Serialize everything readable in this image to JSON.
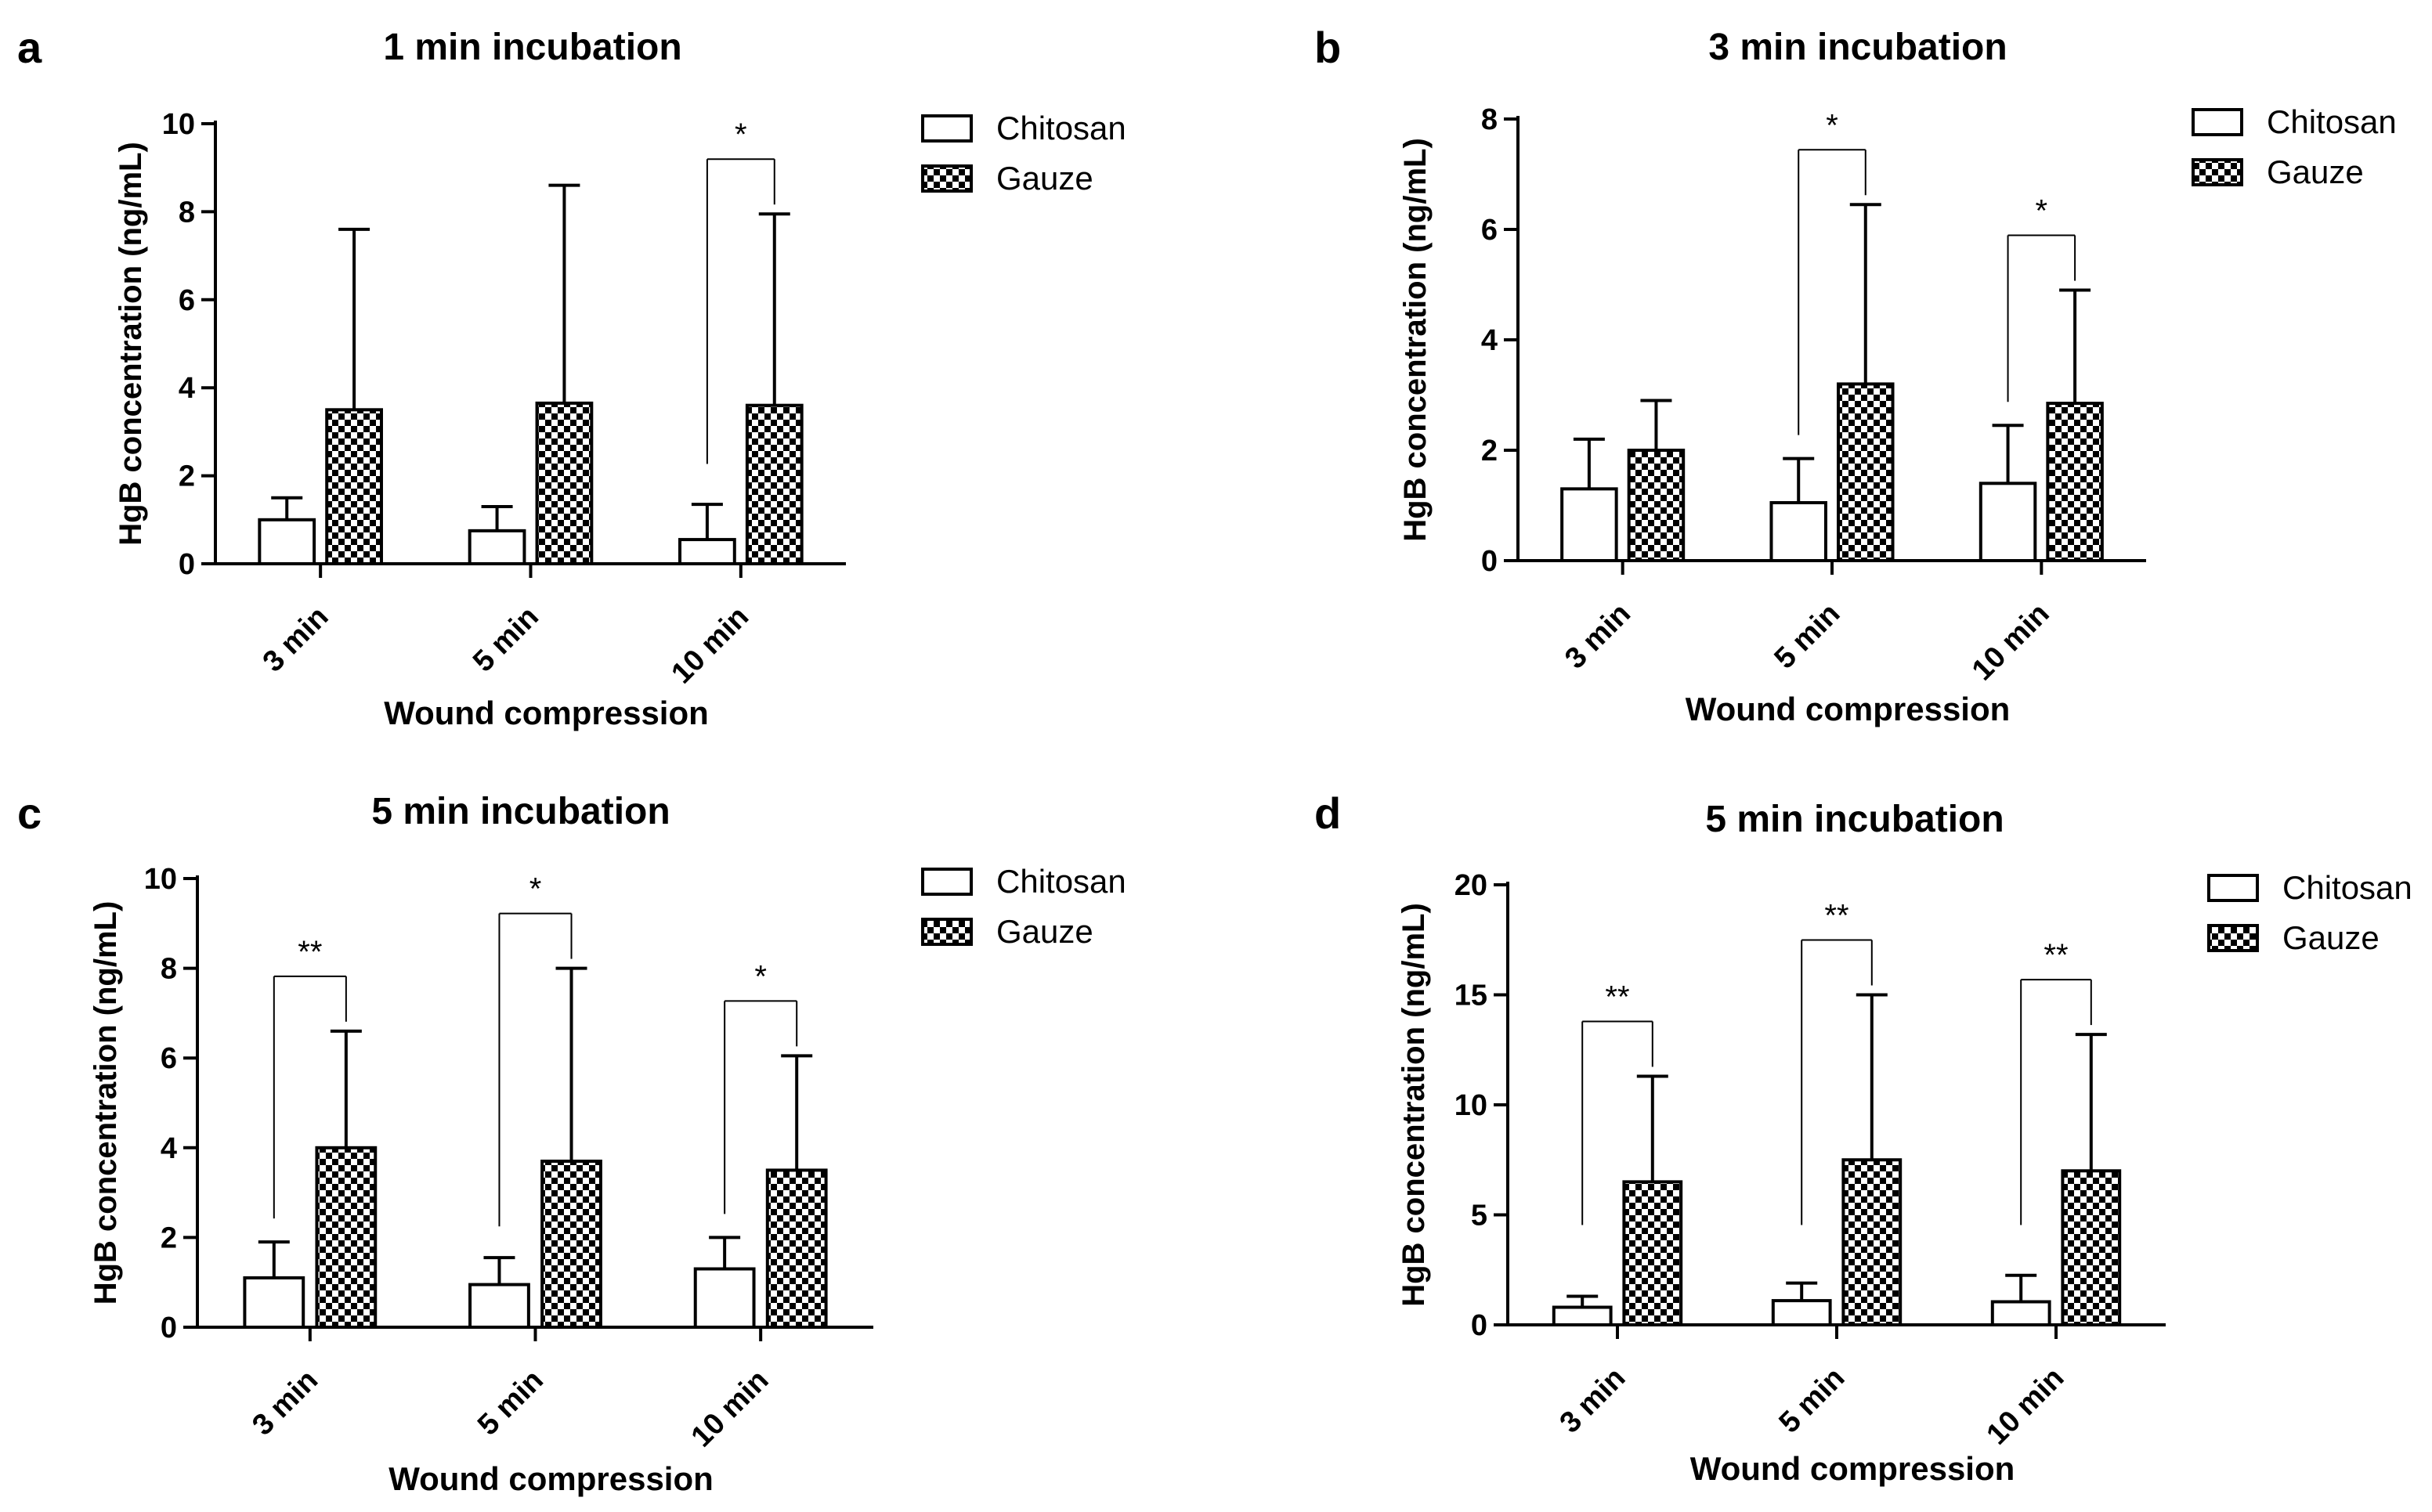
{
  "colors": {
    "axis": "#000000",
    "bar_fill": "#ffffff",
    "checker_dark": "#000000",
    "checker_light": "#ffffff"
  },
  "legend_icons": {
    "chitosan": "white-box-icon",
    "gauze": "checker-box-icon"
  },
  "chart_data": [
    {
      "panel": "a",
      "type": "bar",
      "title": "1 min incubation",
      "xlabel": "Wound compression",
      "ylabel": "HgB concentration (ng/mL)",
      "ylim": [
        0,
        10
      ],
      "yticks": [
        "0",
        "2",
        "4",
        "6",
        "8",
        "10"
      ],
      "categories": [
        "3 min",
        "5 min",
        "10 min"
      ],
      "series": [
        {
          "name": "Chitosan",
          "values": [
            1.0,
            0.75,
            0.55
          ],
          "errors": [
            0.5,
            0.55,
            0.8
          ]
        },
        {
          "name": "Gauze",
          "values": [
            3.5,
            3.65,
            3.6
          ],
          "errors": [
            4.1,
            4.95,
            4.35
          ]
        }
      ],
      "significance": [
        {
          "category": 2,
          "label": "*"
        }
      ]
    },
    {
      "panel": "b",
      "type": "bar",
      "title": "3 min incubation",
      "xlabel": "Wound compression",
      "ylabel": "HgB concentration (ng/mL)",
      "ylim": [
        0,
        8
      ],
      "yticks": [
        "0",
        "2",
        "4",
        "6",
        "8"
      ],
      "categories": [
        "3 min",
        "5 min",
        "10 min"
      ],
      "series": [
        {
          "name": "Chitosan",
          "values": [
            1.3,
            1.05,
            1.4
          ],
          "errors": [
            0.9,
            0.8,
            1.05
          ]
        },
        {
          "name": "Gauze",
          "values": [
            2.0,
            3.2,
            2.85
          ],
          "errors": [
            0.9,
            3.25,
            2.05
          ]
        }
      ],
      "significance": [
        {
          "category": 1,
          "label": "*"
        },
        {
          "category": 2,
          "label": "*"
        }
      ]
    },
    {
      "panel": "c",
      "type": "bar",
      "title": "5 min incubation",
      "xlabel": "Wound compression",
      "ylabel": "HgB concentration (ng/mL)",
      "ylim": [
        0,
        10
      ],
      "yticks": [
        "0",
        "2",
        "4",
        "6",
        "8",
        "10"
      ],
      "categories": [
        "3 min",
        "5 min",
        "10 min"
      ],
      "series": [
        {
          "name": "Chitosan",
          "values": [
            1.1,
            0.95,
            1.3
          ],
          "errors": [
            0.8,
            0.6,
            0.7
          ]
        },
        {
          "name": "Gauze",
          "values": [
            4.0,
            3.7,
            3.5
          ],
          "errors": [
            2.6,
            4.3,
            2.55
          ]
        }
      ],
      "significance": [
        {
          "category": 0,
          "label": "**"
        },
        {
          "category": 1,
          "label": "*"
        },
        {
          "category": 2,
          "label": "*"
        }
      ]
    },
    {
      "panel": "d",
      "type": "bar",
      "title": "5 min incubation",
      "xlabel": "Wound compression",
      "ylabel": "HgB concentration (ng/mL)",
      "ylim": [
        0,
        20
      ],
      "yticks": [
        "0",
        "5",
        "10",
        "15",
        "20"
      ],
      "categories": [
        "3 min",
        "5 min",
        "10 min"
      ],
      "series": [
        {
          "name": "Chitosan",
          "values": [
            0.8,
            1.1,
            1.05
          ],
          "errors": [
            0.5,
            0.8,
            1.2
          ]
        },
        {
          "name": "Gauze",
          "values": [
            6.5,
            7.5,
            7.0
          ],
          "errors": [
            4.8,
            7.5,
            6.2
          ]
        }
      ],
      "significance": [
        {
          "category": 0,
          "label": "**"
        },
        {
          "category": 1,
          "label": "**"
        },
        {
          "category": 2,
          "label": "**"
        }
      ]
    }
  ]
}
